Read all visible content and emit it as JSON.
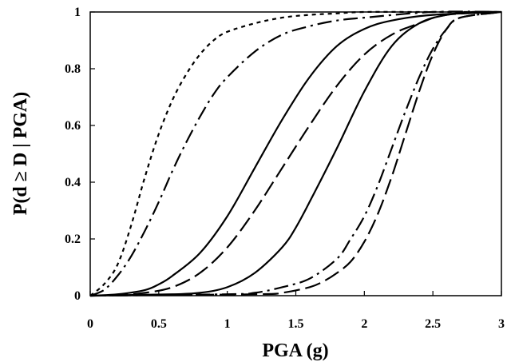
{
  "chart_data": {
    "type": "line",
    "xlabel": "PGA (g)",
    "ylabel": "P(d ≥ D | PGA)",
    "xlim": [
      0,
      3
    ],
    "ylim": [
      0,
      1
    ],
    "xticks": [
      "0",
      "0.5",
      "1",
      "1.5",
      "2",
      "2.5",
      "3"
    ],
    "yticks": [
      "0",
      "0.2",
      "0.4",
      "0.6",
      "0.8",
      "1"
    ],
    "grid": false,
    "series": [
      {
        "dash": "dotted",
        "x": [
          0.0,
          0.1,
          0.2,
          0.3,
          0.4,
          0.5,
          0.6,
          0.7,
          0.8,
          0.9,
          1.0,
          1.2,
          1.4,
          1.6,
          1.8,
          2.0,
          2.5,
          3.0
        ],
        "values": [
          0.0,
          0.04,
          0.11,
          0.25,
          0.42,
          0.57,
          0.69,
          0.78,
          0.85,
          0.9,
          0.93,
          0.96,
          0.98,
          0.99,
          0.995,
          1.0,
          1.0,
          1.0
        ]
      },
      {
        "dash": "long-dash-dot",
        "x": [
          0.0,
          0.1,
          0.2,
          0.3,
          0.4,
          0.5,
          0.6,
          0.7,
          0.8,
          0.9,
          1.0,
          1.2,
          1.4,
          1.6,
          1.8,
          2.0,
          2.5,
          3.0
        ],
        "values": [
          0.0,
          0.02,
          0.07,
          0.14,
          0.23,
          0.33,
          0.44,
          0.54,
          0.63,
          0.71,
          0.77,
          0.86,
          0.92,
          0.95,
          0.97,
          0.98,
          1.0,
          1.0
        ]
      },
      {
        "dash": "solid",
        "x": [
          0.0,
          0.2,
          0.4,
          0.5,
          0.6,
          0.8,
          1.0,
          1.2,
          1.4,
          1.6,
          1.8,
          2.0,
          2.2,
          2.5,
          3.0
        ],
        "values": [
          0.0,
          0.005,
          0.02,
          0.04,
          0.07,
          0.15,
          0.28,
          0.45,
          0.62,
          0.77,
          0.88,
          0.94,
          0.97,
          0.99,
          1.0
        ]
      },
      {
        "dash": "long-dash",
        "x": [
          0.0,
          0.2,
          0.4,
          0.6,
          0.8,
          1.0,
          1.2,
          1.4,
          1.6,
          1.8,
          2.0,
          2.2,
          2.4,
          2.6,
          3.0
        ],
        "values": [
          0.0,
          0.002,
          0.01,
          0.03,
          0.08,
          0.17,
          0.3,
          0.45,
          0.6,
          0.74,
          0.85,
          0.92,
          0.96,
          0.99,
          1.0
        ]
      },
      {
        "dash": "solid",
        "x": [
          0.0,
          0.6,
          0.8,
          1.0,
          1.2,
          1.4,
          1.5,
          1.6,
          1.8,
          2.0,
          2.2,
          2.4,
          2.6,
          2.8,
          3.0
        ],
        "values": [
          0.0,
          0.005,
          0.01,
          0.03,
          0.08,
          0.17,
          0.24,
          0.33,
          0.52,
          0.72,
          0.88,
          0.96,
          0.99,
          1.0,
          1.0
        ]
      },
      {
        "dash": "long-dash-dot",
        "x": [
          0.0,
          1.0,
          1.2,
          1.4,
          1.6,
          1.8,
          1.9,
          2.0,
          2.1,
          2.2,
          2.3,
          2.4,
          2.5,
          2.6,
          2.7,
          3.0
        ],
        "values": [
          0.0,
          0.005,
          0.01,
          0.03,
          0.06,
          0.13,
          0.2,
          0.28,
          0.39,
          0.52,
          0.65,
          0.77,
          0.87,
          0.94,
          0.98,
          1.0
        ]
      },
      {
        "dash": "long-dash",
        "x": [
          0.0,
          1.2,
          1.4,
          1.6,
          1.7,
          1.8,
          1.9,
          2.0,
          2.1,
          2.2,
          2.3,
          2.4,
          2.5,
          2.6,
          2.7,
          3.0
        ],
        "values": [
          0.0,
          0.005,
          0.01,
          0.03,
          0.05,
          0.08,
          0.12,
          0.19,
          0.29,
          0.42,
          0.57,
          0.72,
          0.85,
          0.94,
          0.98,
          1.0
        ]
      }
    ]
  }
}
